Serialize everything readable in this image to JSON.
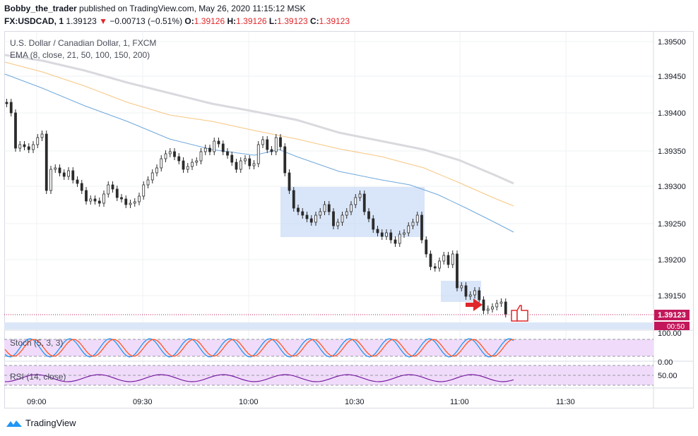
{
  "header": {
    "author": "Bobby_the_trader",
    "published_text": "published on TradingView.com, May 26, 2020 11:15:12 MSK",
    "symbol": "FX:USDCAD, 1",
    "last_price": "1.39123",
    "change_arrow": "▼",
    "change": "−0.00713 (−0.51%)",
    "open_label": "O:",
    "open": "1.39126",
    "high_label": "H:",
    "high": "1.39126",
    "low_label": "L:",
    "low": "1.39123",
    "close_label": "C:",
    "close": "1.39123"
  },
  "chart": {
    "title": "U.S. Dollar / Canadian Dollar, 1, FXCM",
    "ema_label": "EMA (8, close, 21, 50, 100, 150, 200)",
    "price_ticks": [
      "1.39500",
      "1.39450",
      "1.39400",
      "1.39350",
      "1.39300",
      "1.39250",
      "1.39200",
      "1.39150"
    ],
    "price_badge": "1.39123",
    "countdown_badge": "00:50",
    "time_ticks": [
      "09:00",
      "09:30",
      "10:00",
      "10:30",
      "11:00",
      "11:30"
    ]
  },
  "stoch": {
    "label": "Stoch (5, 3, 3)",
    "ticks": [
      "100.00",
      "0.00"
    ]
  },
  "rsi": {
    "label": "RSI (14, close)",
    "ticks": [
      "50.00"
    ]
  },
  "footer": {
    "brand": "TradingView"
  },
  "colors": {
    "up": "#2b2b2b",
    "down": "#2b2b2b",
    "ema_gray": "#d9d9de",
    "ema_orange": "#f7c680",
    "ema_blue": "#6fa8dc",
    "box": "#c9daf5",
    "badge": "#c2185b",
    "stoch_k": "#2196f3",
    "stoch_d": "#ff5722",
    "rsi": "#7b1fa2",
    "band": "#f0dcfa"
  },
  "icons": [
    "red-arrow-icon",
    "thumbs-up-icon",
    "tradingview-logo-icon"
  ]
}
